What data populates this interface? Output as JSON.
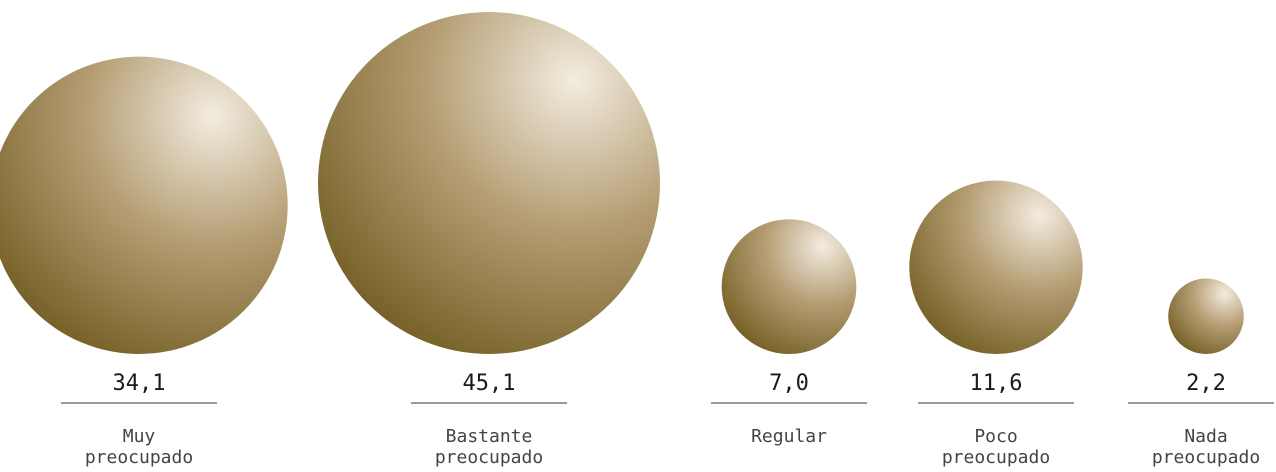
{
  "chart_data": {
    "type": "bubble",
    "categories": [
      [
        "Muy",
        "preocupado"
      ],
      [
        "Bastante",
        "preocupado"
      ],
      [
        "Regular"
      ],
      [
        "Poco",
        "preocupado"
      ],
      [
        "Nada",
        "preocupado"
      ]
    ],
    "values": [
      34.1,
      45.1,
      7.0,
      11.6,
      2.2
    ],
    "value_labels": [
      "34,1",
      "45,1",
      "7,0",
      "11,6",
      "2,2"
    ],
    "bubble_color_light": "#f3ece0",
    "bubble_color_mid": "#b59e74",
    "bubble_color_dark": "#6e5a1e",
    "rule_color": "#9a9a9a"
  }
}
